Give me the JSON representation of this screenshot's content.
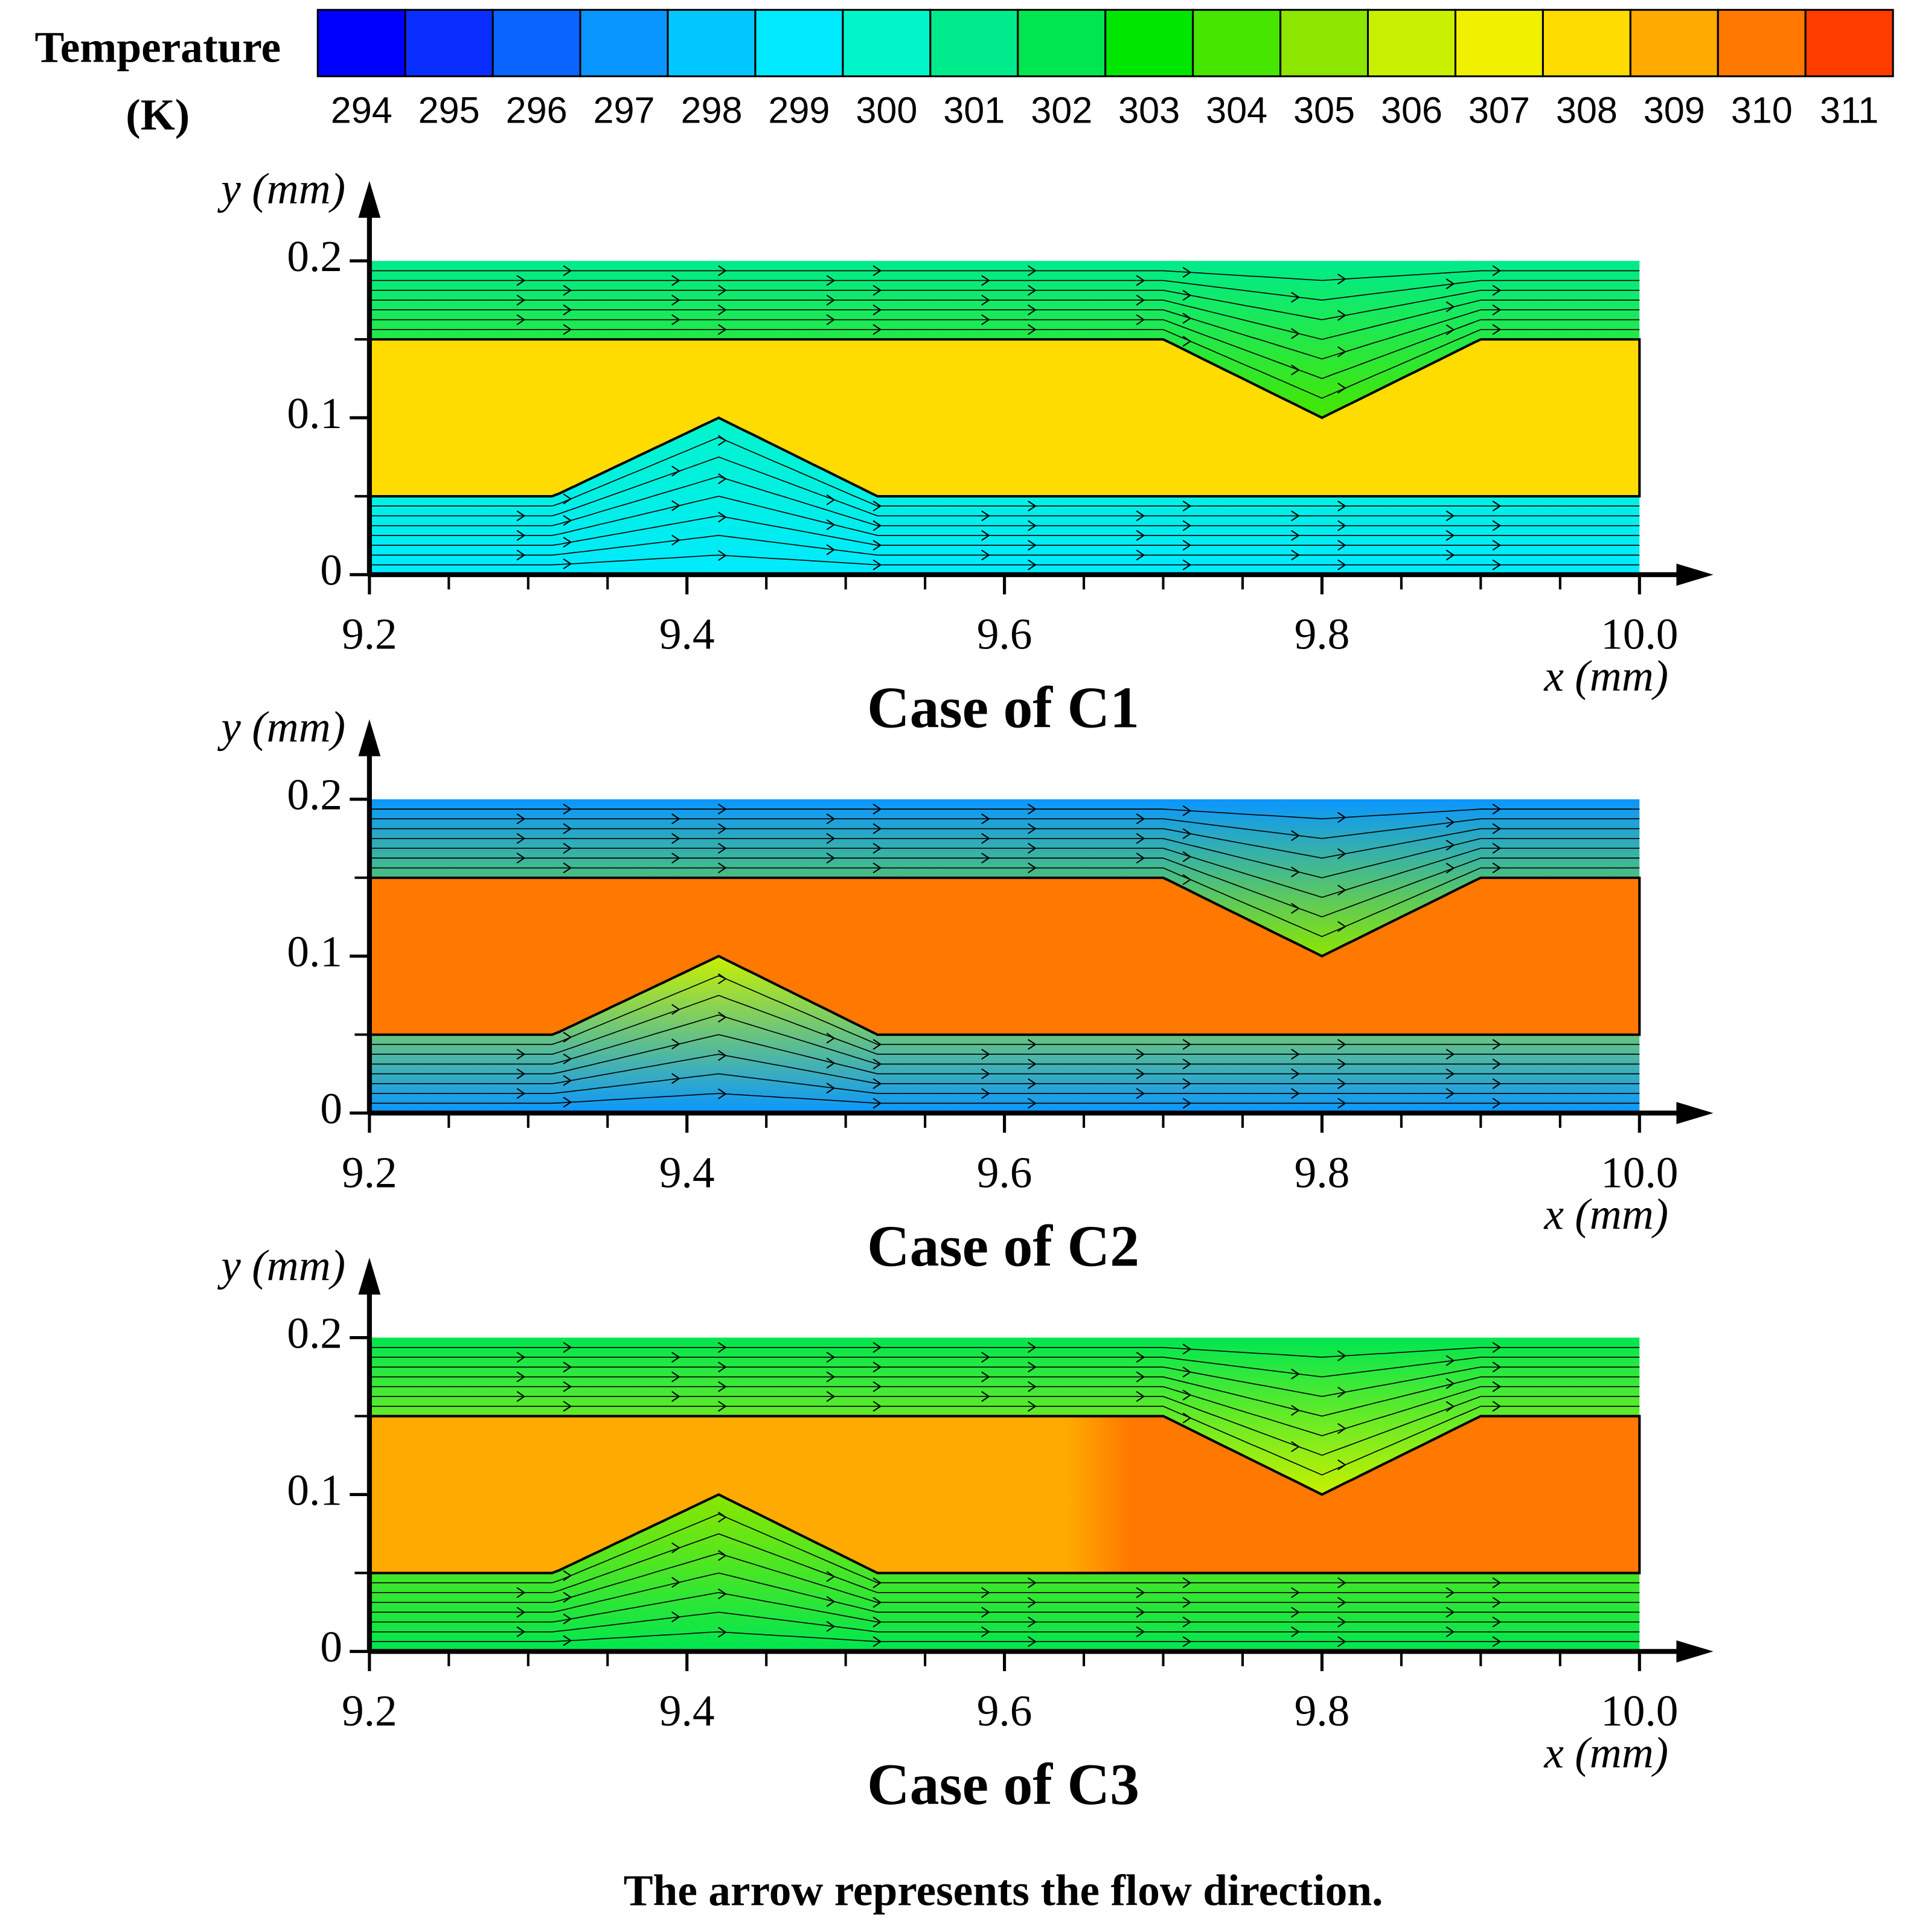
{
  "colorbar": {
    "title": "Temperature",
    "unit": "(K)",
    "ticks": [
      294,
      295,
      296,
      297,
      298,
      299,
      300,
      301,
      302,
      303,
      304,
      305,
      306,
      307,
      308,
      309,
      310,
      311
    ],
    "colors": [
      "#0000ff",
      "#0a2eff",
      "#0a64ff",
      "#0a96ff",
      "#00c8ff",
      "#00eaff",
      "#00f5c8",
      "#00eb8c",
      "#00e650",
      "#00e600",
      "#46e600",
      "#8ce600",
      "#c8f000",
      "#f0f000",
      "#ffdc00",
      "#ffaa00",
      "#ff7800",
      "#ff3c00"
    ]
  },
  "chart_data": [
    {
      "type": "contour",
      "title": "Case of C1",
      "xlabel": "x (mm)",
      "ylabel": "y (mm)",
      "xlim": [
        9.2,
        10.0
      ],
      "ylim": [
        0,
        0.2
      ],
      "xticks": [
        9.2,
        9.4,
        9.6,
        9.8,
        {
          "value": 10,
          "label": "10.0"
        }
      ],
      "yticks": [
        0,
        0.1,
        0.2
      ],
      "xminorticks": [
        9.25,
        9.3,
        9.35,
        9.45,
        9.5,
        9.55,
        9.65,
        9.7,
        9.75,
        9.85,
        9.9,
        9.95
      ],
      "yminorticks": [
        0.05,
        0.15
      ],
      "solid_colors": [
        "#ffdc00",
        "#ffdc00"
      ],
      "top_fluid_colors": [
        "#00eb8c",
        "#46e600"
      ],
      "bottom_fluid_colors": [
        "#00f5c8",
        "#00eaff"
      ]
    },
    {
      "type": "contour",
      "title": "Case of C2",
      "xlabel": "x (mm)",
      "ylabel": "y (mm)",
      "xlim": [
        9.2,
        10.0
      ],
      "ylim": [
        0,
        0.2
      ],
      "xticks": [
        9.2,
        9.4,
        9.6,
        9.8,
        {
          "value": 10,
          "label": "10.0"
        }
      ],
      "yticks": [
        0,
        0.1,
        0.2
      ],
      "xminorticks": [
        9.25,
        9.3,
        9.35,
        9.45,
        9.5,
        9.55,
        9.65,
        9.7,
        9.75,
        9.85,
        9.9,
        9.95
      ],
      "yminorticks": [
        0.05,
        0.15
      ],
      "solid_colors": [
        "#ff7800",
        "#ff7800"
      ],
      "top_fluid_colors": [
        "#0a96ff",
        "#8ce600"
      ],
      "bottom_fluid_colors": [
        "#c8f000",
        "#0a96ff"
      ]
    },
    {
      "type": "contour",
      "title": "Case of C3",
      "xlabel": "x (mm)",
      "ylabel": "y (mm)",
      "xlim": [
        9.2,
        10.0
      ],
      "ylim": [
        0,
        0.2
      ],
      "xticks": [
        9.2,
        9.4,
        9.6,
        9.8,
        {
          "value": 10,
          "label": "10.0"
        }
      ],
      "yticks": [
        0,
        0.1,
        0.2
      ],
      "xminorticks": [
        9.25,
        9.3,
        9.35,
        9.45,
        9.5,
        9.55,
        9.65,
        9.7,
        9.75,
        9.85,
        9.9,
        9.95
      ],
      "yminorticks": [
        0.05,
        0.15
      ],
      "solid_colors": [
        "#ffaa00",
        "#ff7800"
      ],
      "top_fluid_colors": [
        "#00e650",
        "#c8f000"
      ],
      "bottom_fluid_colors": [
        "#8ce600",
        "#00e650"
      ]
    }
  ],
  "caption": "The arrow represents the flow direction."
}
